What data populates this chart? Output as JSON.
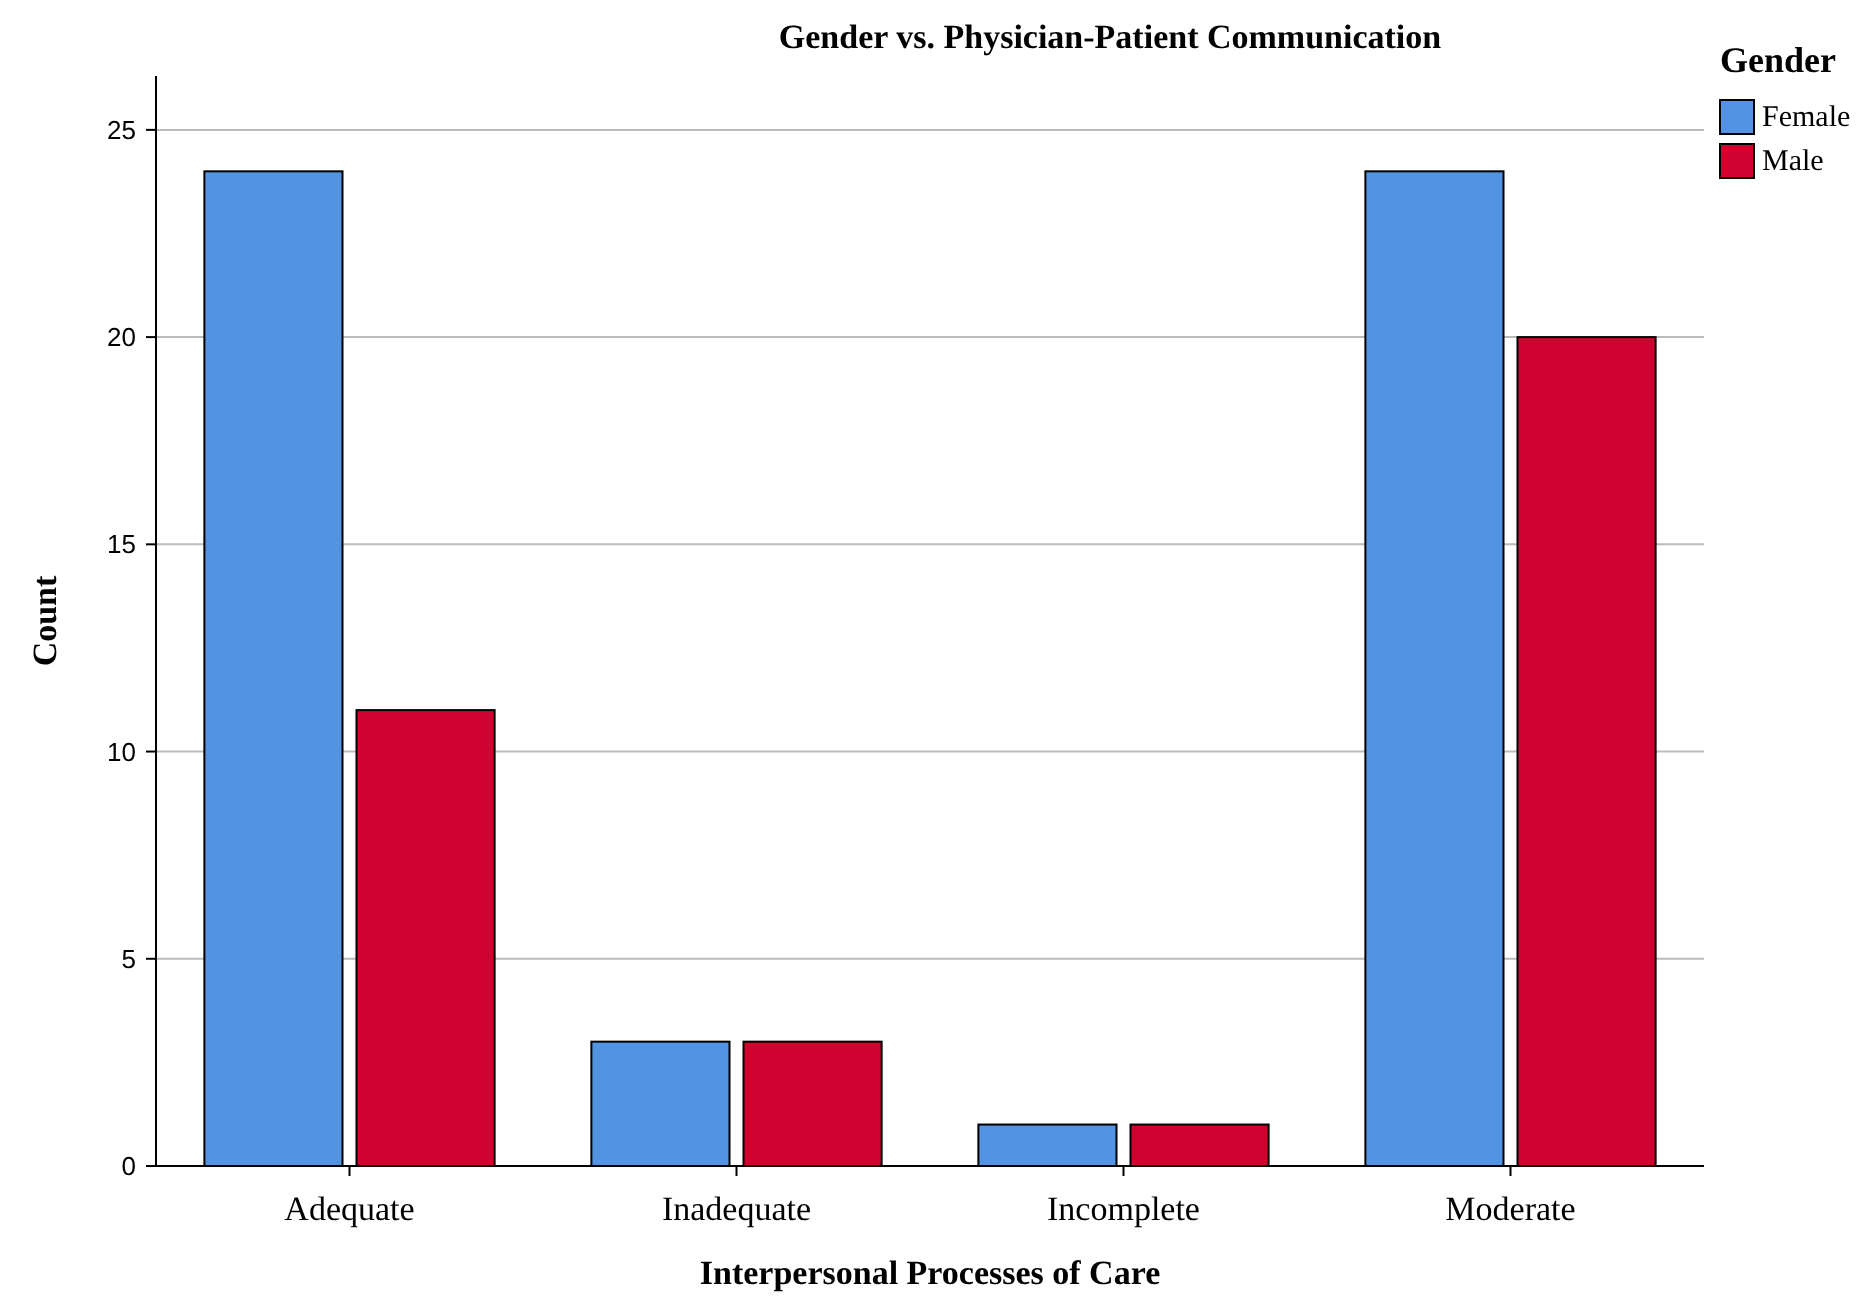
{
  "chart_data": {
    "type": "bar",
    "title": "Gender vs. Physician-Patient Communication",
    "xlabel": "Interpersonal Processes of Care",
    "ylabel": "Count",
    "legend_title": "Gender",
    "categories": [
      "Adequate",
      "Inadequate",
      "Incomplete",
      "Moderate"
    ],
    "series": [
      {
        "name": "Female",
        "color": "#5294e2",
        "values": [
          24,
          3,
          1,
          24
        ]
      },
      {
        "name": "Male",
        "color": "#d0002f",
        "values": [
          11,
          3,
          1,
          20
        ]
      }
    ],
    "ylim": [
      0,
      26.3
    ],
    "yticks": [
      0,
      5,
      10,
      15,
      20,
      25
    ],
    "grid": "y",
    "legend": "top right"
  }
}
